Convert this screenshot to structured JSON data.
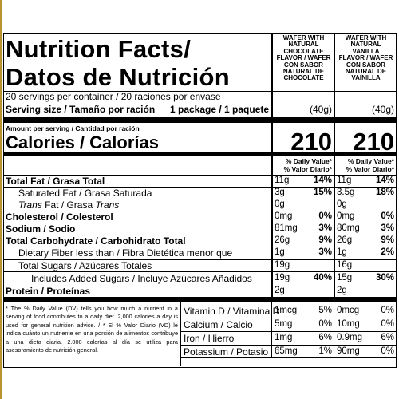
{
  "title": "Nutrition Facts/",
  "title2": "Datos de Nutrición",
  "columns": [
    {
      "header": [
        "WAFER WITH",
        "NATURAL",
        "CHOCOLATE",
        "FLAVOR / WAFER",
        "CON SABOR",
        "NATURAL DE",
        "CHOCOLATE"
      ],
      "serving_weight": "(40g)",
      "calories": "210"
    },
    {
      "header": [
        "WAFER WITH",
        "NATURAL",
        "VANILLA",
        "FLAVOR / WAFER",
        "CON SABOR",
        "NATURAL DE",
        "VAINILLA"
      ],
      "serving_weight": "(40g)",
      "calories": "210"
    }
  ],
  "servings": "20 servings per container / 20 raciones por envase",
  "serving_size_label": "Serving size / Tamaño por ración",
  "serving_size_value": "1 package / 1 paquete",
  "amount_per_serving": "Amount per serving / Cantidad por ración",
  "calories_label": "Calories / Calorías",
  "dv_header": [
    "% Daily Value*",
    "% Valor Diario*"
  ],
  "nutrients": [
    {
      "label": "Total Fat / Grasa Total",
      "values": [
        [
          "11g",
          "14%"
        ],
        [
          "11g",
          "14%"
        ]
      ]
    },
    {
      "label": "Saturated Fat / Grasa Saturada",
      "values": [
        [
          "3g",
          "15%"
        ],
        [
          "3.5g",
          "18%"
        ]
      ]
    },
    {
      "label": "Trans Fat / Grasa Trans",
      "values": [
        [
          "0g",
          ""
        ],
        [
          "0g",
          ""
        ]
      ]
    },
    {
      "label": "Cholesterol / Colesterol",
      "values": [
        [
          "0mg",
          "0%"
        ],
        [
          "0mg",
          "0%"
        ]
      ]
    },
    {
      "label": "Sodium / Sodio",
      "values": [
        [
          "81mg",
          "3%"
        ],
        [
          "80mg",
          "3%"
        ]
      ]
    },
    {
      "label": "Total Carbohydrate / Carbohidrato Total",
      "values": [
        [
          "26g",
          "9%"
        ],
        [
          "26g",
          "9%"
        ]
      ]
    },
    {
      "label": "Dietary Fiber less than / Fibra Dietética menor que",
      "values": [
        [
          "1g",
          "3%"
        ],
        [
          "1g",
          "2%"
        ]
      ]
    },
    {
      "label": "Total Sugars / Azúcares Totales",
      "values": [
        [
          "19g",
          ""
        ],
        [
          "16g",
          ""
        ]
      ]
    },
    {
      "label": "Includes Added Sugars / Incluye Azúcares Añadidos",
      "values": [
        [
          "19g",
          "40%"
        ],
        [
          "15g",
          "30%"
        ]
      ]
    },
    {
      "label": "Protein / Proteínas",
      "values": [
        [
          "2g",
          ""
        ],
        [
          "2g",
          ""
        ]
      ]
    }
  ],
  "vitamins": [
    {
      "label": "Vitamin D / Vitamina D",
      "values": [
        [
          "1mcg",
          "5%"
        ],
        [
          "0mcg",
          "0%"
        ]
      ]
    },
    {
      "label": "Calcium / Calcio",
      "values": [
        [
          "5mg",
          "0%"
        ],
        [
          "10mg",
          "0%"
        ]
      ]
    },
    {
      "label": "Iron / Hierro",
      "values": [
        [
          "1mg",
          "6%"
        ],
        [
          "0.9mg",
          "6%"
        ]
      ]
    },
    {
      "label": "Potassium / Potasio",
      "values": [
        [
          "65mg",
          "1%"
        ],
        [
          "90mg",
          "0%"
        ]
      ]
    }
  ],
  "footnote": "* The % Daily Value (DV) tells you how much a nutrient in a serving of food contributes to a daily diet. 2,000 calories a day is used for general nutrition advice. / * El % Valor Diario (VD) le indica cuánto un nutriente en una porción de alimentos contribuye a una dieta diaria. 2.000 calorías al día se utiliza para asesoramiento de nutrición general."
}
